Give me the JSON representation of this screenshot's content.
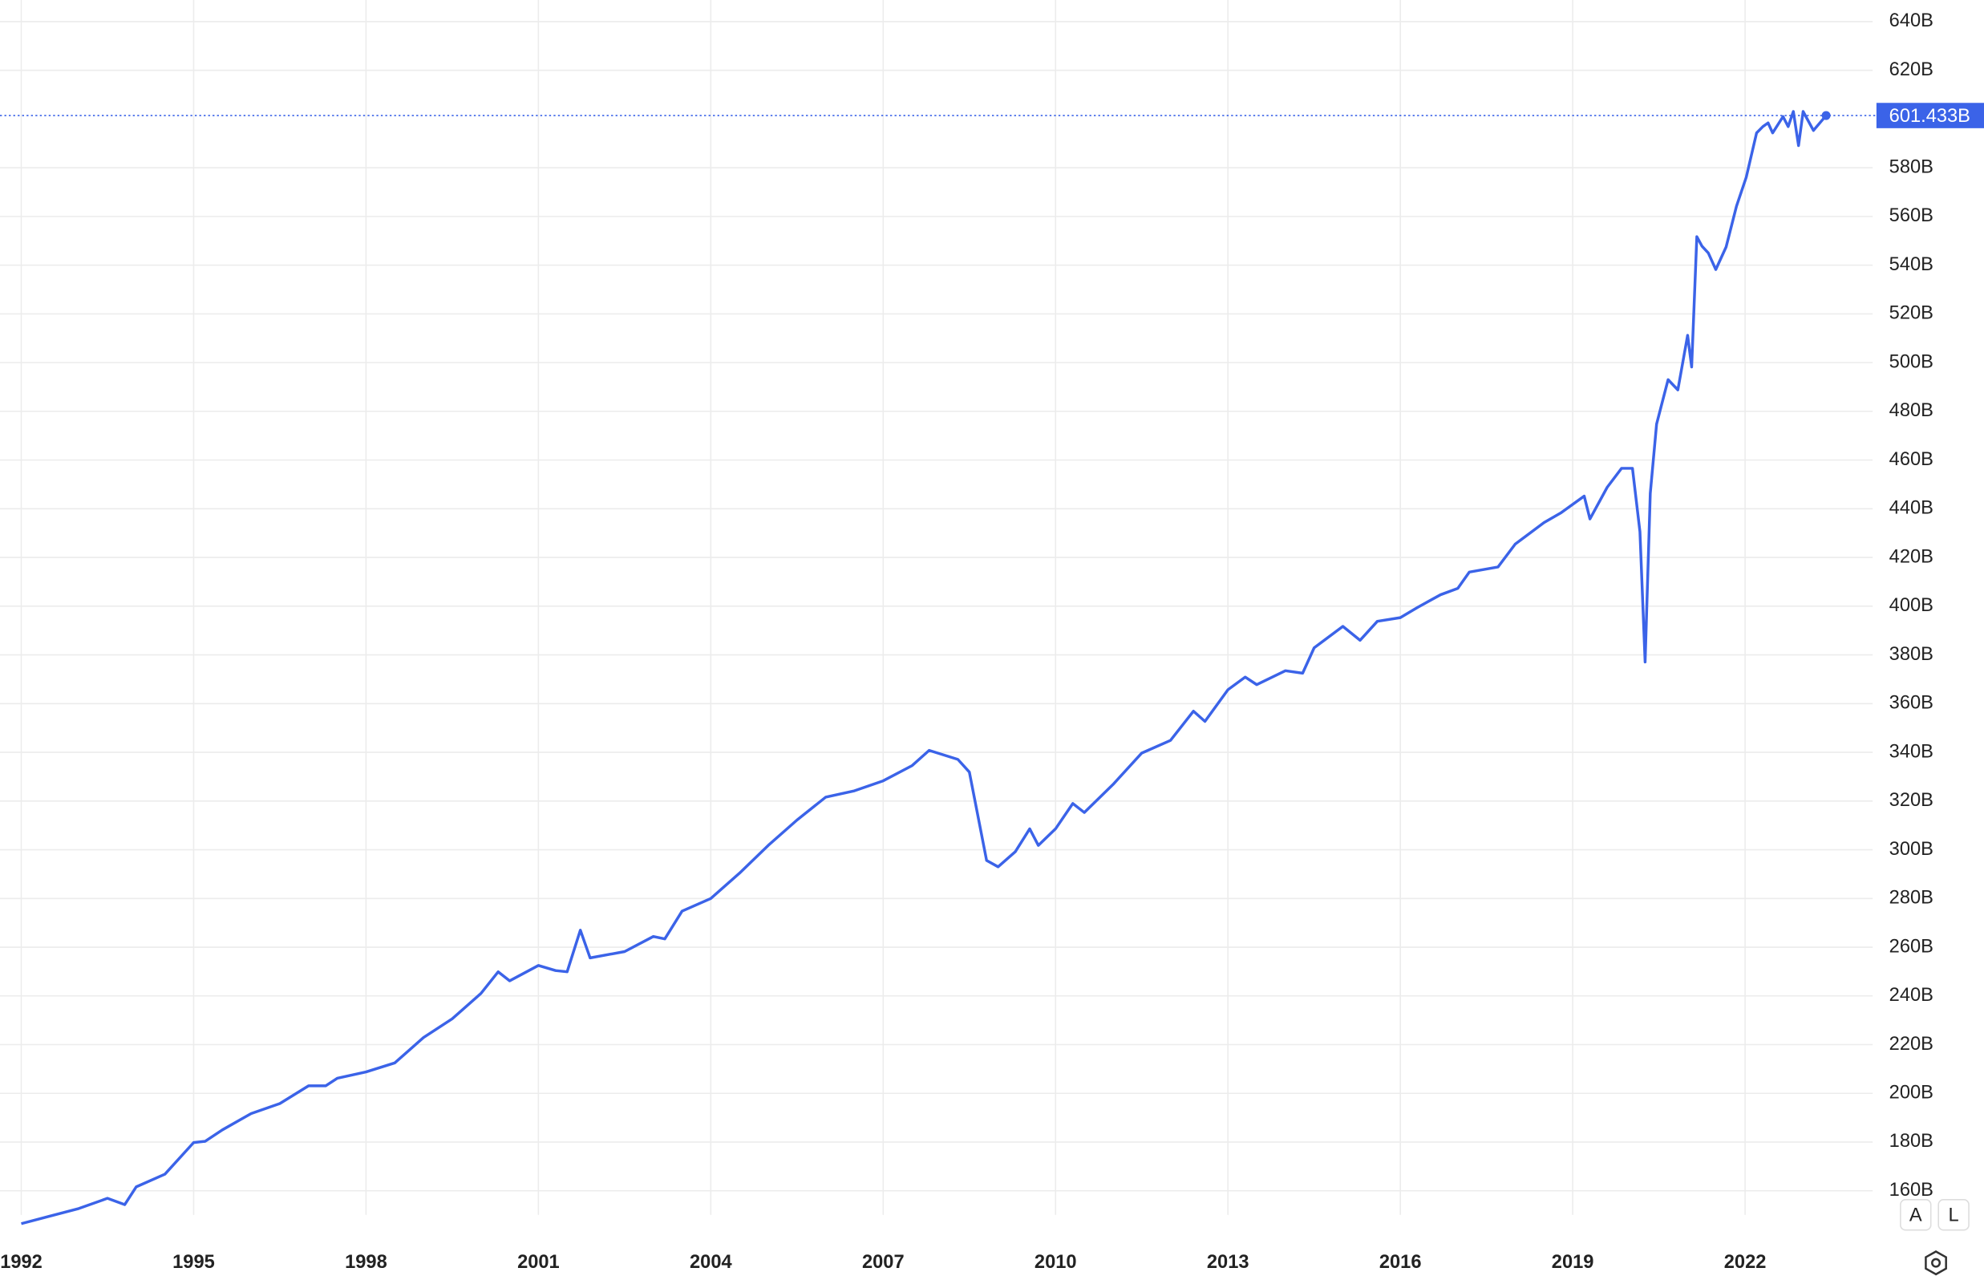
{
  "chart_data": {
    "type": "line",
    "x": [
      1992.0,
      1992.5,
      1993.0,
      1993.5,
      1993.8,
      1994.0,
      1994.5,
      1995.0,
      1995.2,
      1995.5,
      1996.0,
      1996.5,
      1997.0,
      1997.3,
      1997.5,
      1998.0,
      1998.5,
      1999.0,
      1999.5,
      2000.0,
      2000.3,
      2000.5,
      2001.0,
      2001.3,
      2001.5,
      2001.73,
      2001.9,
      2002.5,
      2003.0,
      2003.2,
      2003.5,
      2004.0,
      2004.5,
      2005.0,
      2005.5,
      2006.0,
      2006.5,
      2007.0,
      2007.5,
      2007.8,
      2008.3,
      2008.5,
      2008.8,
      2009.0,
      2009.3,
      2009.55,
      2009.7,
      2010.0,
      2010.3,
      2010.5,
      2011.0,
      2011.5,
      2012.0,
      2012.4,
      2012.6,
      2013.0,
      2013.3,
      2013.5,
      2014.0,
      2014.3,
      2014.5,
      2015.0,
      2015.3,
      2015.6,
      2016.0,
      2016.3,
      2016.7,
      2017.0,
      2017.2,
      2017.7,
      2018.0,
      2018.5,
      2018.8,
      2019.2,
      2019.3,
      2019.6,
      2019.85,
      2020.04,
      2020.17,
      2020.26,
      2020.35,
      2020.46,
      2020.66,
      2020.83,
      2021.0,
      2021.07,
      2021.16,
      2021.25,
      2021.36,
      2021.49,
      2021.67,
      2021.85,
      2022.02,
      2022.2,
      2022.31,
      2022.4,
      2022.48,
      2022.66,
      2022.75,
      2022.84,
      2022.93,
      2023.01,
      2023.19,
      2023.41
    ],
    "series": [
      {
        "name": "Value",
        "color": "#3b63e8",
        "values": [
          146.5,
          149.6,
          152.7,
          156.9,
          154.3,
          161.6,
          166.8,
          179.8,
          180.3,
          185,
          191.7,
          195.8,
          203.1,
          203.1,
          206.2,
          208.8,
          212.5,
          222.9,
          230.6,
          241,
          249.9,
          246.2,
          252.5,
          250.4,
          249.9,
          267,
          255.6,
          258.2,
          264.4,
          263.4,
          274.8,
          280,
          290.4,
          301.8,
          312.2,
          321.6,
          324.2,
          328.3,
          334.5,
          340.8,
          337.1,
          331.9,
          295.6,
          293,
          299.2,
          308.6,
          301.8,
          308.6,
          319,
          315.3,
          326.8,
          339.7,
          344.9,
          356.9,
          352.7,
          365.7,
          370.9,
          367.8,
          373.5,
          372.5,
          382.9,
          391.7,
          386,
          393.8,
          395.3,
          399.5,
          404.7,
          407.3,
          414,
          416.1,
          425.5,
          434.3,
          438.4,
          445.2,
          435.8,
          448.8,
          456.6,
          456.6,
          430.6,
          377.1,
          446.3,
          474.8,
          493,
          488.8,
          511.2,
          498.2,
          551.7,
          547.8,
          545,
          538.2,
          547.5,
          564.2,
          576.1,
          594.3,
          596.9,
          598.4,
          594.3,
          601,
          596.9,
          603.1,
          589.1,
          603.1,
          595.3,
          601.433
        ],
        "value_labels": {
          "103": "601.433B"
        }
      }
    ],
    "xlim": [
      1991.63,
      2024.22
    ],
    "xticks": [
      1992,
      1995,
      1998,
      2001,
      2004,
      2007,
      2010,
      2013,
      2016,
      2019,
      2022
    ],
    "ylim": [
      140,
      650
    ],
    "yticks": [
      {
        "value": 160,
        "label": "160B"
      },
      {
        "value": 180,
        "label": "180B"
      },
      {
        "value": 200,
        "label": "200B"
      },
      {
        "value": 220,
        "label": "220B"
      },
      {
        "value": 240,
        "label": "240B"
      },
      {
        "value": 260,
        "label": "260B"
      },
      {
        "value": 280,
        "label": "280B"
      },
      {
        "value": 300,
        "label": "300B"
      },
      {
        "value": 320,
        "label": "320B"
      },
      {
        "value": 340,
        "label": "340B"
      },
      {
        "value": 360,
        "label": "360B"
      },
      {
        "value": 380,
        "label": "380B"
      },
      {
        "value": 400,
        "label": "400B"
      },
      {
        "value": 420,
        "label": "420B"
      },
      {
        "value": 440,
        "label": "440B"
      },
      {
        "value": 460,
        "label": "460B"
      },
      {
        "value": 480,
        "label": "480B"
      },
      {
        "value": 500,
        "label": "500B"
      },
      {
        "value": 520,
        "label": "520B"
      },
      {
        "value": 540,
        "label": "540B"
      },
      {
        "value": 560,
        "label": "560B"
      },
      {
        "value": 580,
        "label": "580B"
      },
      {
        "value": 620,
        "label": "620B"
      },
      {
        "value": 640,
        "label": "640B"
      }
    ],
    "grid": true
  },
  "ui": {
    "buttons": [
      "A",
      "L"
    ]
  }
}
